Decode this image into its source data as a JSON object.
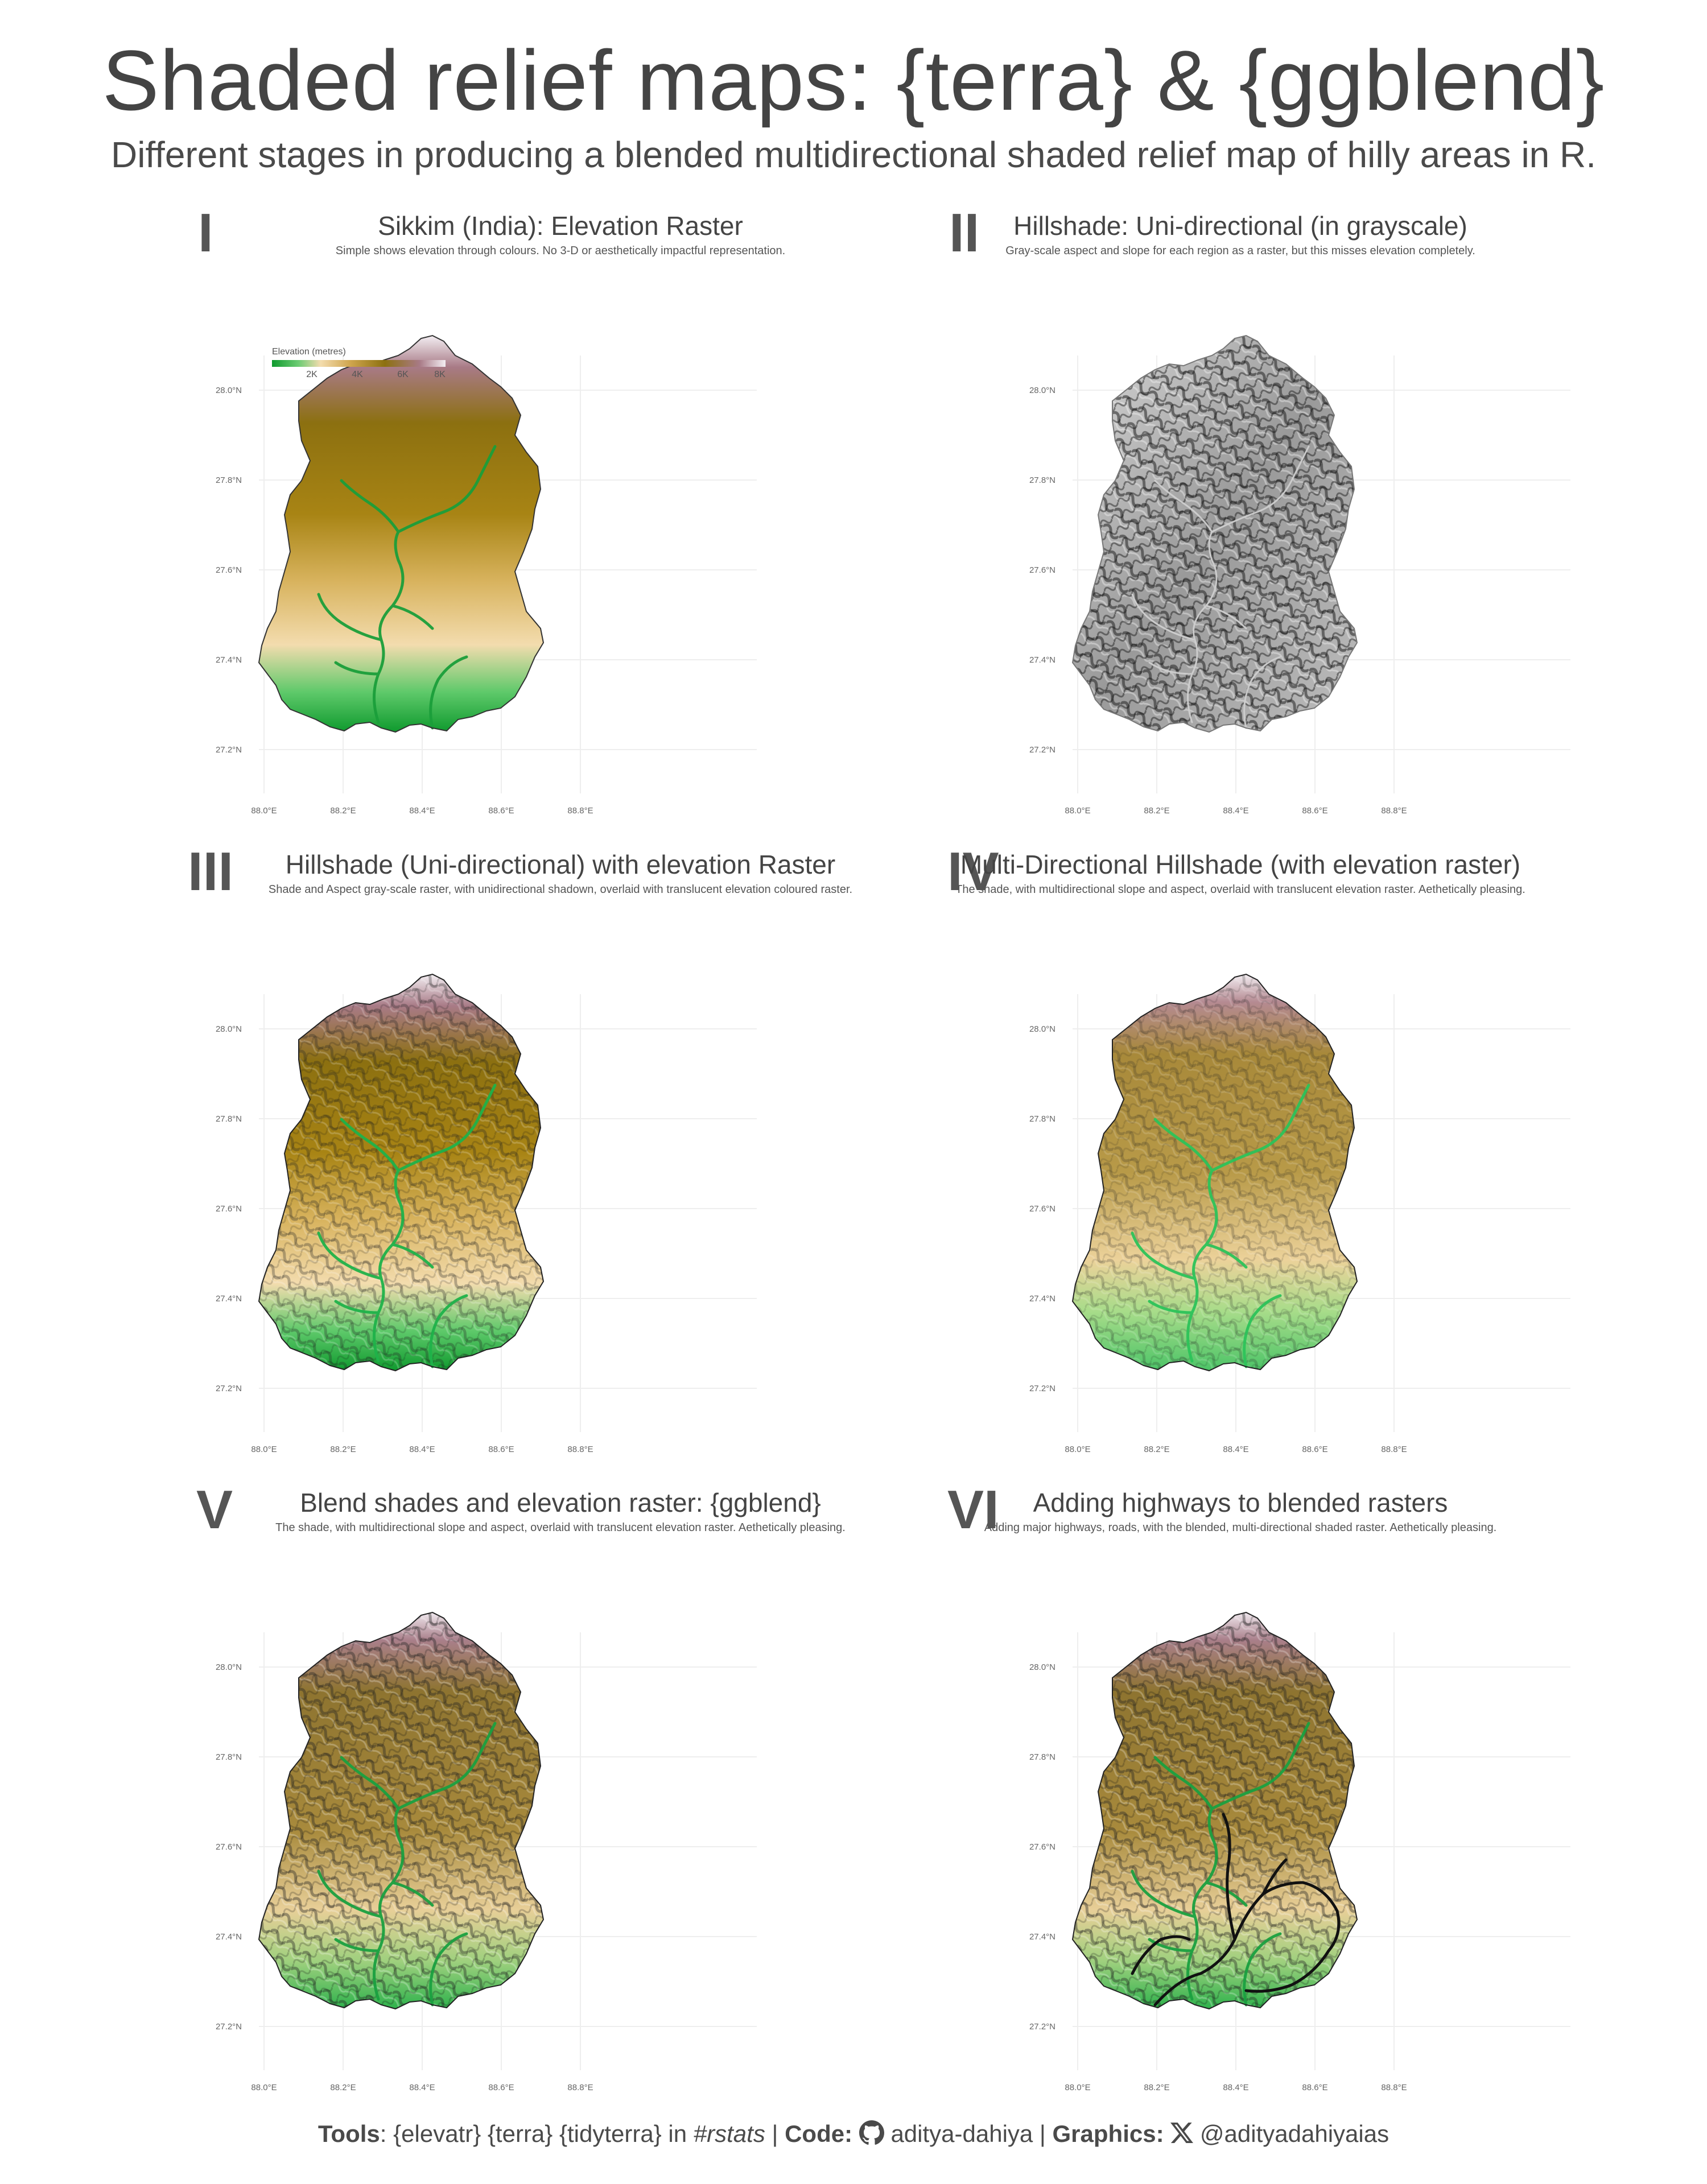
{
  "title": "Shaded relief maps: {terra} & {ggblend}",
  "subtitle": "Different stages in producing a blended multidirectional shaded relief map of hilly areas in R.",
  "axes": {
    "lat_ticks": [
      "28.0°N",
      "27.8°N",
      "27.6°N",
      "27.4°N",
      "27.2°N"
    ],
    "lon_ticks": [
      "88.0°E",
      "88.2°E",
      "88.4°E",
      "88.6°E",
      "88.8°E"
    ]
  },
  "legend": {
    "title": "Elevation (metres)",
    "ticks": [
      "2K",
      "4K",
      "6K",
      "8K"
    ]
  },
  "panels": [
    {
      "numeral": "I",
      "title": "Sikkim (India): Elevation Raster",
      "desc": "Simple shows elevation through colours. No 3-D or aesthetically impactful representation.",
      "style": "elevation"
    },
    {
      "numeral": "II",
      "title": "Hillshade: Uni-directional (in grayscale)",
      "desc": "Gray-scale aspect and slope for each region as a raster, but this misses elevation completely.",
      "style": "gray"
    },
    {
      "numeral": "III",
      "title": "Hillshade (Uni-directional) with elevation Raster",
      "desc": "Shade and Aspect gray-scale raster, with unidirectional shadown, overlaid with translucent elevation coloured raster.",
      "style": "shaded"
    },
    {
      "numeral": "IV",
      "title": "Multi-Directional Hillshade (with elevation raster)",
      "desc": "The shade, with multidirectional slope and aspect, overlaid with translucent elevation raster. Aethetically pleasing.",
      "style": "multi"
    },
    {
      "numeral": "V",
      "title": "Blend shades and elevation raster: {ggblend}",
      "desc": "The shade, with multidirectional slope and aspect, overlaid with translucent elevation raster. Aethetically pleasing.",
      "style": "blend"
    },
    {
      "numeral": "VI",
      "title": "Adding highways to blended rasters",
      "desc": "Adding major highways, roads, with the blended, multi-directional shaded raster. Aethetically pleasing.",
      "style": "roads"
    }
  ],
  "colors": {
    "lowland_green": "#1faa3c",
    "midland_tan": "#f1d9a6",
    "upland_olive": "#9a7a10",
    "peak_mauve": "#a87a86",
    "snow": "#f4eef2",
    "gray_relief": "#9a9a9a",
    "text": "#444444"
  },
  "footer": {
    "tools_label": "Tools",
    "tools_text": ": {elevatr} {terra} {tidyterra} in ",
    "tools_hashtag": "#rstats",
    "sep1": " | ",
    "code_label": "Code:",
    "github_icon": "github-icon",
    "code_handle": "aditya-dahiya",
    "sep2": "  | ",
    "graphics_label": "Graphics:",
    "x_icon": "x-logo-icon",
    "graphics_handle": "@adityadahiyaias"
  }
}
